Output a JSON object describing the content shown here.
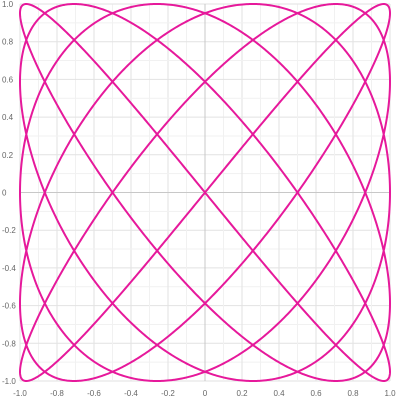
{
  "chart_data": {
    "type": "line",
    "title": "",
    "xlabel": "",
    "ylabel": "",
    "xlim": [
      -1.0,
      1.0
    ],
    "ylim": [
      -1.0,
      1.0
    ],
    "x_ticks": [
      "-1.0",
      "-0.8",
      "-0.6",
      "-0.4",
      "-0.2",
      "0",
      "0.2",
      "0.4",
      "0.6",
      "0.8",
      "1.0"
    ],
    "y_ticks": [
      "-1.0",
      "-0.8",
      "-0.6",
      "-0.4",
      "-0.2",
      "0",
      "0.2",
      "0.4",
      "0.6",
      "0.8",
      "1.0"
    ],
    "grid": true,
    "legend": "none",
    "series": [
      {
        "curve": "lissajous",
        "x_function": "sin(t)",
        "y_function": "sin(1.2*t)",
        "t_range": [
          0,
          31.416
        ],
        "color": "#e6199b"
      }
    ]
  }
}
